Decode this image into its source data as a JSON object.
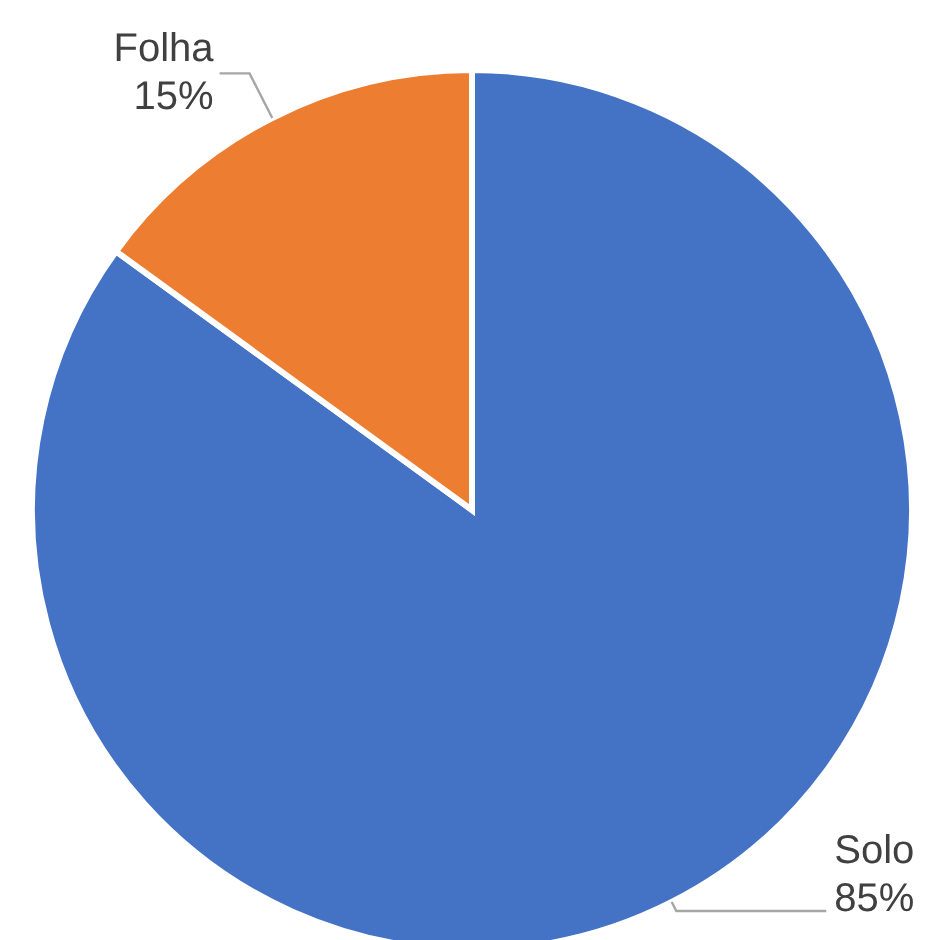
{
  "chart_data": {
    "type": "pie",
    "categories": [
      "Solo",
      "Folha"
    ],
    "values": [
      85,
      15
    ],
    "colors": [
      "#4472c4",
      "#ed7d31"
    ],
    "value_labels": [
      "85%",
      "15%"
    ]
  }
}
